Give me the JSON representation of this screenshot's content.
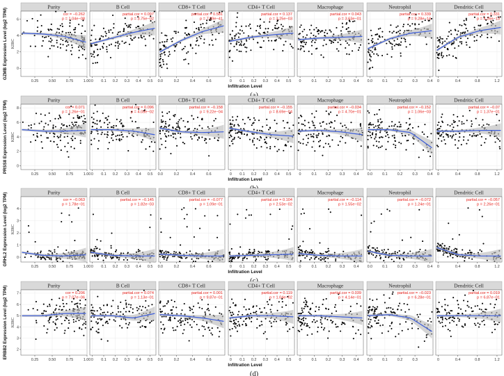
{
  "figure": {
    "cancer_label": "KIRC",
    "x_axis_label": "Infiltration Level",
    "colors": {
      "point": "#000000",
      "fit": "#3a5bd9",
      "band": "#bdbdbd",
      "annotation": "#e8221c",
      "strip": "#d9d9d9",
      "grid": "#ebebeb"
    }
  },
  "chart_data": [
    {
      "type": "scatter",
      "panel": "(a)",
      "gene": "GZMB",
      "ylabel": "GZMB Expression Level (log2 TPM)",
      "ylim": [
        -1,
        7
      ],
      "yticks": [
        0,
        2,
        4,
        6
      ],
      "grid": true,
      "cells": [
        {
          "title": "Purity",
          "stat_label": "cor",
          "cor": "−0.262",
          "p": "1.04e−08",
          "xlim": [
            0.05,
            1.0
          ],
          "xticks": [
            "0.25",
            "0.50",
            "0.75",
            "1.00"
          ],
          "xtick_values": [
            0.25,
            0.5,
            0.75,
            1.0
          ],
          "trend": [
            4.3,
            4.2,
            3.9,
            3.2
          ]
        },
        {
          "title": "B Cell",
          "stat_label": "partial.cor",
          "cor": "0.097",
          "p": "3.75e−02",
          "xlim": [
            -0.02,
            0.55
          ],
          "xticks": [
            "0",
            "0.1",
            "0.2",
            "0.3",
            "0.4",
            "0.5"
          ],
          "xtick_values": [
            0,
            0.1,
            0.2,
            0.3,
            0.4,
            0.5
          ],
          "trend": [
            3.0,
            3.7,
            4.4,
            4.9
          ]
        },
        {
          "title": "CD8+ T Cell",
          "stat_label": "partial.cor",
          "cor": "0.581",
          "p": "7.09e−41",
          "xlim": [
            -0.02,
            0.8
          ],
          "xticks": [
            "0.0",
            "0.2",
            "0.4",
            "0.6"
          ],
          "xtick_values": [
            0,
            0.2,
            0.4,
            0.6
          ],
          "trend": [
            2.0,
            3.4,
            4.5,
            5.2
          ]
        },
        {
          "title": "CD4+ T Cell",
          "stat_label": "partial.cor",
          "cor": "0.137",
          "p": "3.25e−03",
          "xlim": [
            -0.02,
            0.55
          ],
          "xticks": [
            "0",
            "0.1",
            "0.2",
            "0.3",
            "0.4",
            "0.5"
          ],
          "xtick_values": [
            0,
            0.1,
            0.2,
            0.3,
            0.4,
            0.5
          ],
          "trend": [
            3.3,
            3.8,
            4.1,
            4.3
          ]
        },
        {
          "title": "Macrophage",
          "stat_label": "partial.cor",
          "cor": "0.043",
          "p": "3.63e−01",
          "xlim": [
            -0.02,
            0.45
          ],
          "xticks": [
            "0",
            "0.1",
            "0.2",
            "0.3",
            "0.4"
          ],
          "xtick_values": [
            0,
            0.1,
            0.2,
            0.3,
            0.4
          ],
          "trend": [
            3.5,
            3.7,
            3.8,
            3.9
          ]
        },
        {
          "title": "Neutrophil",
          "stat_label": "partial.cor",
          "cor": "0.339",
          "p": "9.28e−14",
          "xlim": [
            -0.02,
            0.42
          ],
          "xticks": [
            "0.0",
            "0.1",
            "0.2",
            "0.3",
            "0.4"
          ],
          "xtick_values": [
            0,
            0.1,
            0.2,
            0.3,
            0.4
          ],
          "trend": [
            2.4,
            3.6,
            4.3,
            4.6
          ]
        },
        {
          "title": "Dendritic Cell",
          "stat_label": "partial.cor",
          "cor": "0.331",
          "p": "4.26e−13",
          "xlim": [
            -0.05,
            1.3
          ],
          "xticks": [
            "0",
            "0.4",
            "0.8",
            "1.2"
          ],
          "xtick_values": [
            0,
            0.4,
            0.8,
            1.2
          ],
          "trend": [
            2.2,
            3.8,
            4.6,
            5.0
          ]
        }
      ]
    },
    {
      "type": "scatter",
      "panel": "(b)",
      "gene": "PRSS8",
      "ylabel": "PRSS8 Expression Level (log2 TPM)",
      "ylim": [
        -0.5,
        8.5
      ],
      "yticks": [
        0,
        2,
        4,
        6,
        8
      ],
      "grid": true,
      "cells": [
        {
          "title": "Purity",
          "stat_label": "cor",
          "cor": "0.071",
          "p": "1.26e−01",
          "xlim": [
            0.05,
            1.0
          ],
          "xticks": [
            "0.25",
            "0.50",
            "0.75",
            "1.00"
          ],
          "xtick_values": [
            0.25,
            0.5,
            0.75,
            1.0
          ],
          "trend": [
            5.0,
            4.8,
            4.8,
            4.9
          ]
        },
        {
          "title": "B Cell",
          "stat_label": "partial.cor",
          "cor": "0.096",
          "p": "4.03e−02",
          "xlim": [
            -0.02,
            0.55
          ],
          "xticks": [
            "0",
            "0.1",
            "0.2",
            "0.3",
            "0.4",
            "0.5"
          ],
          "xtick_values": [
            0,
            0.1,
            0.2,
            0.3,
            0.4,
            0.5
          ],
          "trend": [
            5.0,
            5.0,
            4.8,
            4.3
          ]
        },
        {
          "title": "CD8+ T Cell",
          "stat_label": "partial.cor",
          "cor": "−0.158",
          "p": "9.22e−04",
          "xlim": [
            -0.02,
            0.8
          ],
          "xticks": [
            "0.0",
            "0.2",
            "0.4",
            "0.6"
          ],
          "xtick_values": [
            0,
            0.2,
            0.4,
            0.6
          ],
          "trend": [
            5.2,
            4.7,
            4.6,
            4.7
          ]
        },
        {
          "title": "CD4+ T Cell",
          "stat_label": "partial.cor",
          "cor": "−0.155",
          "p": "8.69e−04",
          "xlim": [
            -0.02,
            0.55
          ],
          "xticks": [
            "0",
            "0.1",
            "0.2",
            "0.3",
            "0.4",
            "0.5"
          ],
          "xtick_values": [
            0,
            0.1,
            0.2,
            0.3,
            0.4,
            0.5
          ],
          "trend": [
            5.2,
            4.7,
            4.3,
            4.1
          ]
        },
        {
          "title": "Macrophage",
          "stat_label": "partial.cor",
          "cor": "−0.034",
          "p": "4.70e−01",
          "xlim": [
            -0.02,
            0.45
          ],
          "xticks": [
            "0",
            "0.1",
            "0.2",
            "0.3",
            "0.4"
          ],
          "xtick_values": [
            0,
            0.1,
            0.2,
            0.3,
            0.4
          ],
          "trend": [
            4.8,
            4.9,
            4.7,
            4.3
          ]
        },
        {
          "title": "Neutrophil",
          "stat_label": "partial.cor",
          "cor": "−0.152",
          "p": "1.06e−03",
          "xlim": [
            -0.02,
            0.42
          ],
          "xticks": [
            "0.0",
            "0.1",
            "0.2",
            "0.3",
            "0.4"
          ],
          "xtick_values": [
            0,
            0.1,
            0.2,
            0.3,
            0.4
          ],
          "trend": [
            5.0,
            5.0,
            4.6,
            2.5
          ]
        },
        {
          "title": "Dendritic Cell",
          "stat_label": "partial.cor",
          "cor": "−0.07",
          "p": "1.37e−01",
          "xlim": [
            -0.05,
            1.3
          ],
          "xticks": [
            "0",
            "0.4",
            "0.8",
            "1.2"
          ],
          "xtick_values": [
            0,
            0.4,
            0.8,
            1.2
          ],
          "trend": [
            4.8,
            4.8,
            4.9,
            4.9
          ]
        }
      ]
    },
    {
      "type": "scatter",
      "panel": "(c)",
      "gene": "GRHL2",
      "ylabel": "GRHL2 Expression Level (log2 TPM)",
      "ylim": [
        -0.4,
        5
      ],
      "yticks": [
        0,
        1,
        2,
        3,
        4
      ],
      "grid": true,
      "cells": [
        {
          "title": "Purity",
          "stat_label": "cor",
          "cor": "−0.063",
          "p": "1.78e−01",
          "xlim": [
            0.05,
            1.0
          ],
          "xticks": [
            "0.25",
            "0.50",
            "0.75",
            "1.00"
          ],
          "xtick_values": [
            0.25,
            0.5,
            0.75,
            1.0
          ],
          "trend": [
            0.4,
            0.15,
            0.1,
            0.2
          ]
        },
        {
          "title": "B Cell",
          "stat_label": "partial.cor",
          "cor": "−0.145",
          "p": "1.82e−03",
          "xlim": [
            -0.02,
            0.55
          ],
          "xticks": [
            "0",
            "0.1",
            "0.2",
            "0.3",
            "0.4",
            "0.5"
          ],
          "xtick_values": [
            0,
            0.1,
            0.2,
            0.3,
            0.4,
            0.5
          ],
          "trend": [
            0.4,
            0.15,
            0.1,
            0.1
          ]
        },
        {
          "title": "CD8+ T Cell",
          "stat_label": "partial.cor",
          "cor": "−0.077",
          "p": "1.09e−01",
          "xlim": [
            -0.02,
            0.8
          ],
          "xticks": [
            "0.0",
            "0.2",
            "0.4",
            "0.6"
          ],
          "xtick_values": [
            0,
            0.2,
            0.4,
            0.6
          ],
          "trend": [
            0.25,
            0.15,
            0.1,
            0.1
          ]
        },
        {
          "title": "CD4+ T Cell",
          "stat_label": "partial.cor",
          "cor": "0.104",
          "p": "2.53e−02",
          "xlim": [
            -0.02,
            0.55
          ],
          "xticks": [
            "0",
            "0.1",
            "0.2",
            "0.3",
            "0.4",
            "0.5"
          ],
          "xtick_values": [
            0,
            0.1,
            0.2,
            0.3,
            0.4,
            0.5
          ],
          "trend": [
            0.1,
            0.15,
            0.2,
            0.25
          ]
        },
        {
          "title": "Macrophage",
          "stat_label": "partial.cor",
          "cor": "−0.114",
          "p": "1.55e−02",
          "xlim": [
            -0.02,
            0.45
          ],
          "xticks": [
            "0",
            "0.1",
            "0.2",
            "0.3",
            "0.4"
          ],
          "xtick_values": [
            0,
            0.1,
            0.2,
            0.3,
            0.4
          ],
          "trend": [
            0.3,
            0.15,
            0.1,
            0.1
          ]
        },
        {
          "title": "Neutrophil",
          "stat_label": "partial.cor",
          "cor": "−0.072",
          "p": "1.24e−01",
          "xlim": [
            -0.02,
            0.42
          ],
          "xticks": [
            "0.0",
            "0.1",
            "0.2",
            "0.3",
            "0.4"
          ],
          "xtick_values": [
            0,
            0.1,
            0.2,
            0.3,
            0.4
          ],
          "trend": [
            0.5,
            0.15,
            0.1,
            0.1
          ]
        },
        {
          "title": "Dendritic Cell",
          "stat_label": "partial.cor",
          "cor": "−0.057",
          "p": "2.26e−01",
          "xlim": [
            -0.05,
            1.3
          ],
          "xticks": [
            "0",
            "0.4",
            "0.8",
            "1.2"
          ],
          "xtick_values": [
            0,
            0.4,
            0.8,
            1.2
          ],
          "trend": [
            0.8,
            0.2,
            0.1,
            0.1
          ]
        }
      ]
    },
    {
      "type": "scatter",
      "panel": "(d)",
      "gene": "ERBB2",
      "ylabel": "ERBB2 Expression Level (log2 TPM)",
      "ylim": [
        1.5,
        7.3
      ],
      "yticks": [
        2,
        3,
        4,
        5,
        6,
        7
      ],
      "grid": true,
      "cells": [
        {
          "title": "Purity",
          "stat_label": "cor",
          "cor": "0.206",
          "p": "7.07e−06",
          "xlim": [
            0.05,
            1.0
          ],
          "xticks": [
            "0.25",
            "0.50",
            "0.75",
            "1.00"
          ],
          "xtick_values": [
            0.25,
            0.5,
            0.75,
            1.0
          ],
          "trend": [
            5.0,
            5.0,
            5.2,
            5.2
          ]
        },
        {
          "title": "B Cell",
          "stat_label": "partial.cor",
          "cor": "0.074",
          "p": "1.13e−01",
          "xlim": [
            -0.02,
            0.55
          ],
          "xticks": [
            "0",
            "0.1",
            "0.2",
            "0.3",
            "0.4",
            "0.5"
          ],
          "xtick_values": [
            0,
            0.1,
            0.2,
            0.3,
            0.4,
            0.5
          ],
          "trend": [
            5.0,
            5.0,
            4.8,
            5.2
          ]
        },
        {
          "title": "CD8+ T Cell",
          "stat_label": "partial.cor",
          "cor": "0.001",
          "p": "9.87e−01",
          "xlim": [
            -0.02,
            0.8
          ],
          "xticks": [
            "0.0",
            "0.2",
            "0.4",
            "0.6"
          ],
          "xtick_values": [
            0,
            0.2,
            0.4,
            0.6
          ],
          "trend": [
            5.1,
            5.0,
            4.8,
            4.5
          ]
        },
        {
          "title": "CD4+ T Cell",
          "stat_label": "partial.cor",
          "cor": "0.119",
          "p": "1.04e−02",
          "xlim": [
            -0.02,
            0.55
          ],
          "xticks": [
            "0",
            "0.1",
            "0.2",
            "0.3",
            "0.4",
            "0.5"
          ],
          "xtick_values": [
            0,
            0.1,
            0.2,
            0.3,
            0.4,
            0.5
          ],
          "trend": [
            4.8,
            5.0,
            5.0,
            4.9
          ]
        },
        {
          "title": "Macrophage",
          "stat_label": "partial.cor",
          "cor": "0.039",
          "p": "4.14e−01",
          "xlim": [
            -0.02,
            0.45
          ],
          "xticks": [
            "0",
            "0.1",
            "0.2",
            "0.3",
            "0.4"
          ],
          "xtick_values": [
            0,
            0.1,
            0.2,
            0.3,
            0.4
          ],
          "trend": [
            5.0,
            5.0,
            4.9,
            4.8
          ]
        },
        {
          "title": "Neutrophil",
          "stat_label": "partial.cor",
          "cor": "−0.023",
          "p": "6.28e−01",
          "xlim": [
            -0.02,
            0.42
          ],
          "xticks": [
            "0.0",
            "0.1",
            "0.2",
            "0.3"
          ],
          "xtick_values": [
            0,
            0.1,
            0.2,
            0.3
          ],
          "trend": [
            5.0,
            5.1,
            4.8,
            3.6
          ]
        },
        {
          "title": "Dendritic Cell",
          "stat_label": "partial.cor",
          "cor": "0.019",
          "p": "6.87e−01",
          "xlim": [
            -0.05,
            1.3
          ],
          "xticks": [
            "0",
            "0.4",
            "0.8",
            "1.2"
          ],
          "xtick_values": [
            0,
            0.4,
            0.8,
            1.2
          ],
          "trend": [
            5.0,
            5.0,
            5.0,
            5.0
          ]
        }
      ]
    }
  ]
}
